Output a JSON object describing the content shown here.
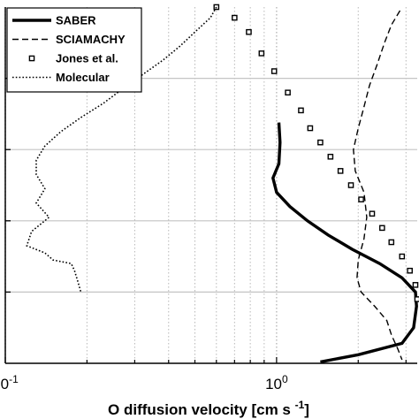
{
  "chart_data": {
    "type": "line",
    "title": "",
    "xlabel": "O diffusion velocity [cm s",
    "xlabel_sup": "-1",
    "xlabel_end": "]",
    "ylabel": "",
    "xscale": "log",
    "xlim": [
      0.1,
      3.3
    ],
    "ylim": [
      0,
      5
    ],
    "x_ticks": [
      {
        "value": 0.1,
        "base": "10",
        "exp": "-1"
      },
      {
        "value": 1,
        "base": "10",
        "exp": "0"
      }
    ],
    "y_grid": [
      1,
      2,
      3,
      4
    ],
    "grid": true,
    "legend_position": "top-left",
    "series": [
      {
        "name": "SABER",
        "style": "solid",
        "color": "#000000",
        "points": [
          [
            1.02,
            3.38
          ],
          [
            1.03,
            3.1
          ],
          [
            1.02,
            2.8
          ],
          [
            0.97,
            2.6
          ],
          [
            1.0,
            2.4
          ],
          [
            1.12,
            2.2
          ],
          [
            1.3,
            2.0
          ],
          [
            1.55,
            1.8
          ],
          [
            1.9,
            1.6
          ],
          [
            2.4,
            1.4
          ],
          [
            2.9,
            1.2
          ],
          [
            3.25,
            1.0
          ],
          [
            3.28,
            0.8
          ],
          [
            3.2,
            0.5
          ],
          [
            2.9,
            0.28
          ],
          [
            2.0,
            0.12
          ],
          [
            1.45,
            0.02
          ]
        ]
      },
      {
        "name": "SCIAMACHY",
        "style": "dashed",
        "color": "#000000",
        "points": [
          [
            2.85,
            4.95
          ],
          [
            2.65,
            4.75
          ],
          [
            2.5,
            4.5
          ],
          [
            2.35,
            4.2
          ],
          [
            2.2,
            3.9
          ],
          [
            2.1,
            3.6
          ],
          [
            2.0,
            3.3
          ],
          [
            1.92,
            3.0
          ],
          [
            1.95,
            2.7
          ],
          [
            2.1,
            2.4
          ],
          [
            2.15,
            2.05
          ],
          [
            2.1,
            1.75
          ],
          [
            2.0,
            1.45
          ],
          [
            1.98,
            1.2
          ],
          [
            2.05,
            1.0
          ],
          [
            2.3,
            0.8
          ],
          [
            2.55,
            0.6
          ],
          [
            2.65,
            0.4
          ],
          [
            2.8,
            0.2
          ],
          [
            2.9,
            0.05
          ]
        ]
      },
      {
        "name": "Jones et al.",
        "style": "squares",
        "color": "#000000",
        "points": [
          [
            0.6,
            5.0
          ],
          [
            0.7,
            4.85
          ],
          [
            0.79,
            4.65
          ],
          [
            0.88,
            4.35
          ],
          [
            0.98,
            4.1
          ],
          [
            1.1,
            3.8
          ],
          [
            1.23,
            3.55
          ],
          [
            1.33,
            3.3
          ],
          [
            1.45,
            3.1
          ],
          [
            1.58,
            2.9
          ],
          [
            1.72,
            2.7
          ],
          [
            1.88,
            2.5
          ],
          [
            2.05,
            2.3
          ],
          [
            2.25,
            2.1
          ],
          [
            2.45,
            1.9
          ],
          [
            2.65,
            1.7
          ],
          [
            2.9,
            1.5
          ],
          [
            3.1,
            1.3
          ],
          [
            3.25,
            1.1
          ],
          [
            3.3,
            0.9
          ]
        ]
      },
      {
        "name": "Molecular",
        "style": "dotted",
        "color": "#000000",
        "points": [
          [
            0.6,
            5.0
          ],
          [
            0.57,
            4.85
          ],
          [
            0.5,
            4.65
          ],
          [
            0.44,
            4.45
          ],
          [
            0.38,
            4.25
          ],
          [
            0.32,
            4.05
          ],
          [
            0.27,
            3.85
          ],
          [
            0.23,
            3.65
          ],
          [
            0.19,
            3.45
          ],
          [
            0.16,
            3.25
          ],
          [
            0.14,
            3.05
          ],
          [
            0.13,
            2.85
          ],
          [
            0.13,
            2.65
          ],
          [
            0.14,
            2.45
          ],
          [
            0.13,
            2.25
          ],
          [
            0.145,
            2.05
          ],
          [
            0.125,
            1.85
          ],
          [
            0.12,
            1.65
          ],
          [
            0.14,
            1.55
          ],
          [
            0.15,
            1.45
          ],
          [
            0.175,
            1.4
          ],
          [
            0.18,
            1.3
          ],
          [
            0.185,
            1.15
          ],
          [
            0.19,
            1.0
          ]
        ]
      }
    ]
  }
}
